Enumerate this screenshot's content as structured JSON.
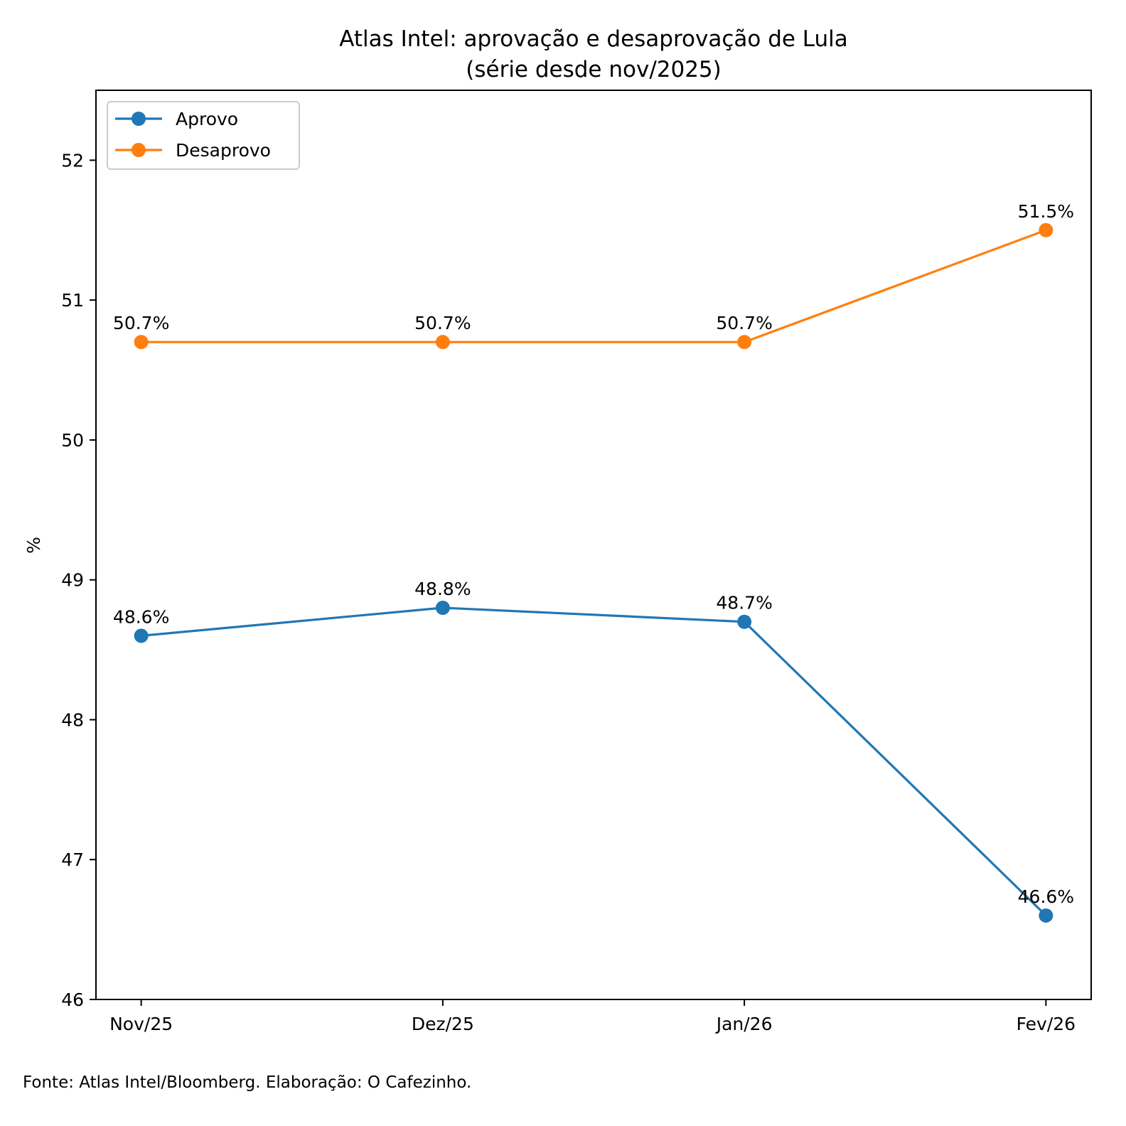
{
  "chart_data": {
    "type": "line",
    "title": "Atlas Intel: aprovação e desaprovação de Lula",
    "subtitle": "(série desde nov/2025)",
    "xlabel": "",
    "ylabel": "%",
    "categories": [
      "Nov/25",
      "Dez/25",
      "Jan/26",
      "Fev/26"
    ],
    "series": [
      {
        "name": "Aprovo",
        "color": "#1f77b4",
        "values": [
          48.6,
          48.8,
          48.7,
          46.6
        ],
        "labels": [
          "48.6%",
          "48.8%",
          "48.7%",
          "46.6%"
        ]
      },
      {
        "name": "Desaprovo",
        "color": "#ff7f0e",
        "values": [
          50.7,
          50.7,
          50.7,
          51.5
        ],
        "labels": [
          "50.7%",
          "50.7%",
          "50.7%",
          "51.5%"
        ]
      }
    ],
    "ylim": [
      46,
      52.5
    ],
    "yticks": [
      46,
      47,
      48,
      49,
      50,
      51,
      52
    ],
    "ytick_labels": [
      "46",
      "47",
      "48",
      "49",
      "50",
      "51",
      "52"
    ],
    "grid": false,
    "legend_position": "top-left",
    "markers": "circle",
    "source_note": "Fonte: Atlas Intel/Bloomberg. Elaboração: O Cafezinho."
  }
}
